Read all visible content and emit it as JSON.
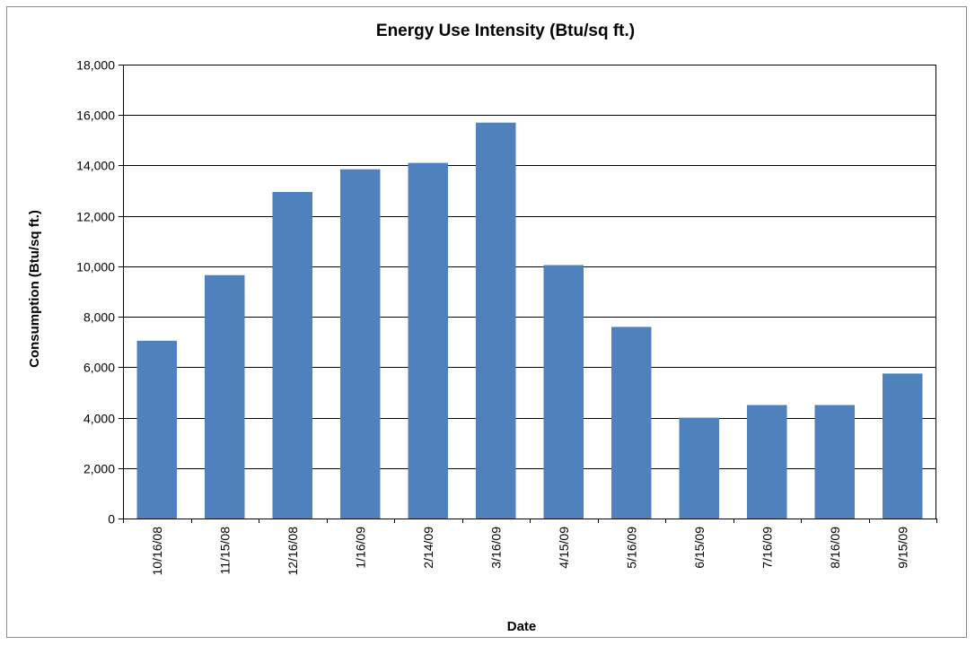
{
  "chart_data": {
    "type": "bar",
    "title": "Energy Use Intensity (Btu/sq ft.)",
    "xlabel": "Date",
    "ylabel": "Consumption (Btu/sq ft.)",
    "categories": [
      "10/16/08",
      "11/15/08",
      "12/16/08",
      "1/16/09",
      "2/14/09",
      "3/16/09",
      "4/15/09",
      "5/16/09",
      "6/15/09",
      "7/16/09",
      "8/16/09",
      "9/15/09"
    ],
    "values": [
      7050,
      9650,
      12950,
      13850,
      14100,
      15700,
      10050,
      7600,
      4000,
      4500,
      4500,
      5750
    ],
    "ylim": [
      0,
      18000
    ],
    "yticks": [
      0,
      2000,
      4000,
      6000,
      8000,
      10000,
      12000,
      14000,
      16000,
      18000
    ],
    "ytick_labels": [
      "0",
      "2,000",
      "4,000",
      "6,000",
      "8,000",
      "10,000",
      "12,000",
      "14,000",
      "16,000",
      "18,000"
    ],
    "grid": true,
    "legend": "none",
    "colors": {
      "bar": "#4f81bd",
      "grid": "#000000",
      "frame": "#8c8c8c"
    }
  }
}
